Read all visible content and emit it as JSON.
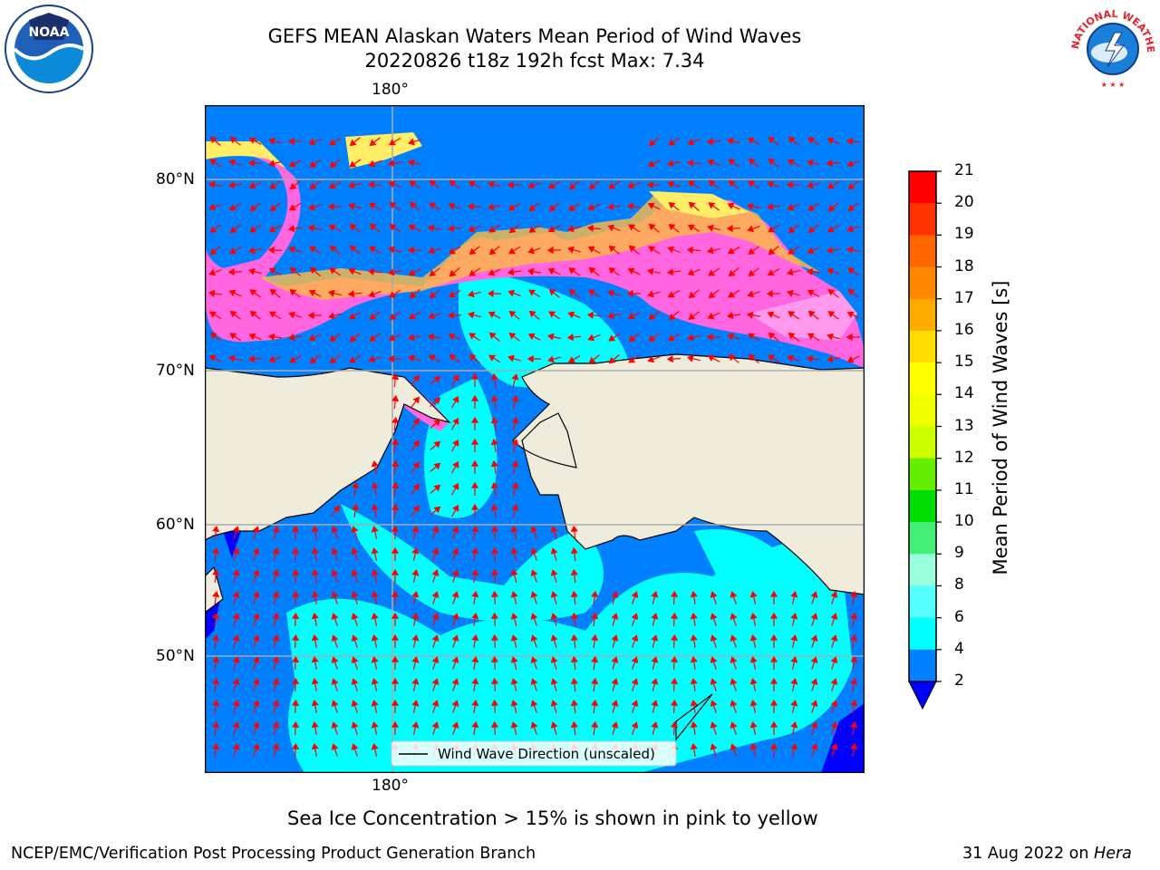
{
  "title": {
    "line1": "GEFS MEAN Alaskan Waters Mean Period of Wind Waves",
    "line2": "20220826 t18z 192h fcst   Max: 7.34"
  },
  "map": {
    "lon_label_top": "180°",
    "lon_label_bottom": "180°",
    "lat_labels": [
      "80°N",
      "70°N",
      "60°N",
      "50°N"
    ],
    "legend_label": "Wind Wave Direction (unscaled)",
    "colors": {
      "land": "#efecdc",
      "ocean_low": "#0080ff",
      "ocean_mid": "#00ffff",
      "deep": "#0000ff",
      "ice_pink": "#ff66e0",
      "ice_yellow": "#ffee66",
      "ice_orange": "#ffbb44",
      "arrow": "#ff0000",
      "grid": "#aaaaaa"
    }
  },
  "colorbar": {
    "label": "Mean Period of Wind Waves [s]",
    "ticks": [
      "21",
      "20",
      "19",
      "18",
      "17",
      "16",
      "15",
      "14",
      "13",
      "12",
      "11",
      "10",
      "9",
      "8",
      "6",
      "4",
      "2"
    ],
    "colors": [
      "#ff0000",
      "#ff3300",
      "#ff6600",
      "#ff8800",
      "#ffaa00",
      "#ffdd00",
      "#ffff00",
      "#eeff00",
      "#ccff00",
      "#66ee00",
      "#00dd00",
      "#44ee77",
      "#99ffdd",
      "#55ffff",
      "#00ffff",
      "#0080ff"
    ],
    "under_color": "#0000ff"
  },
  "notes": {
    "sea_ice": "Sea Ice Concentration > 15% is shown in pink to yellow"
  },
  "footer": {
    "left": "NCEP/EMC/Verification Post Processing Product Generation Branch",
    "date": "31 Aug 2022 on ",
    "machine": "Hera"
  },
  "logos": {
    "noaa_text": "NOAA",
    "nws_text": "NATIONAL WEATHER SERVICE"
  }
}
